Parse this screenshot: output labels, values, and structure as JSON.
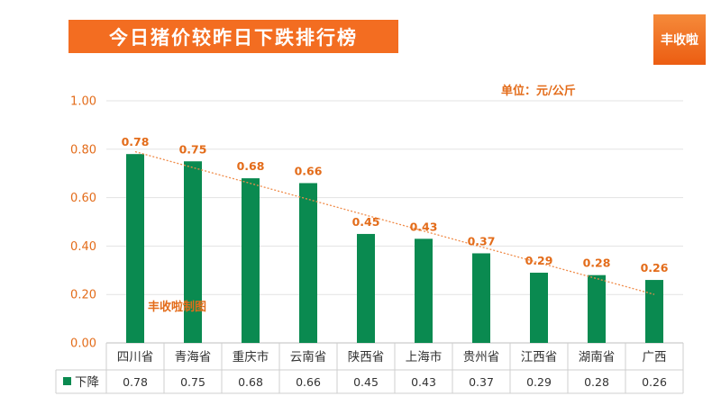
{
  "header": {
    "title": "今日猪价较昨日下跌排行榜",
    "logo_text": "丰收啦"
  },
  "unit_label": "单位：元/公斤",
  "watermark": "丰收啦制图",
  "colors": {
    "bar": "#0a8a50",
    "accent": "#f36d21",
    "trendline": "#f08c4a"
  },
  "chart_data": {
    "type": "bar",
    "categories": [
      "四川省",
      "青海省",
      "重庆市",
      "云南省",
      "陕西省",
      "上海市",
      "贵州省",
      "江西省",
      "湖南省",
      "广西"
    ],
    "series": [
      {
        "name": "下降",
        "values": [
          0.78,
          0.75,
          0.68,
          0.66,
          0.45,
          0.43,
          0.37,
          0.29,
          0.28,
          0.26
        ]
      }
    ],
    "value_labels": [
      "0.78",
      "0.75",
      "0.68",
      "0.66",
      "0.45",
      "0.43",
      "0.37",
      "0.29",
      "0.28",
      "0.26"
    ],
    "y_ticks": [
      "0.00",
      "0.20",
      "0.40",
      "0.60",
      "0.80",
      "1.00"
    ],
    "ylim": [
      0,
      1.0
    ],
    "grid": true,
    "trendline": "linear",
    "data_table": true
  }
}
